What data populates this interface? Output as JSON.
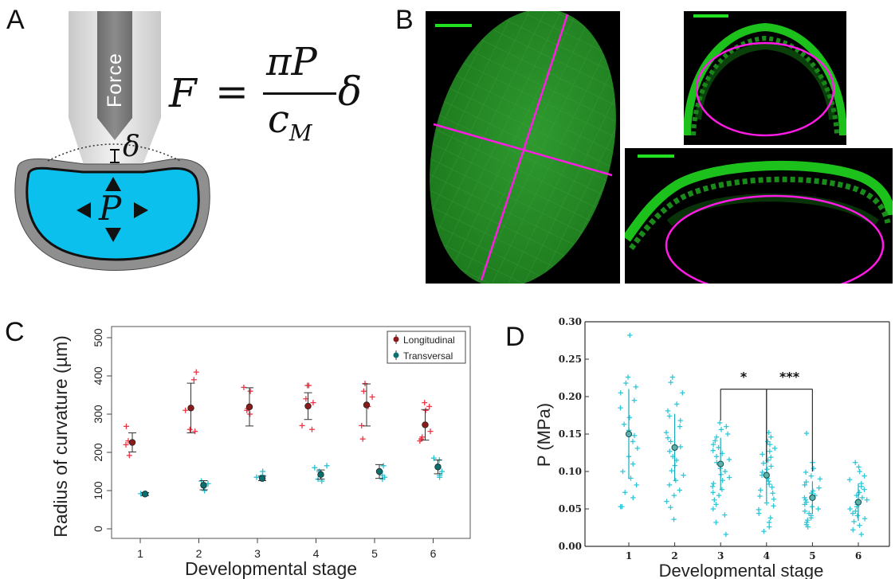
{
  "panels": {
    "a": "A",
    "b": "B",
    "c": "C",
    "d": "D"
  },
  "panel_a": {
    "probe_label": "Force",
    "equation_lhs": "F",
    "equation_eq": "=",
    "numerator": "πP",
    "denominator_c": "c",
    "denominator_sub": "M",
    "delta": "δ",
    "pressure_symbol": "P",
    "colors": {
      "cell": "#0bc0ec",
      "wall": "#8a8a8a",
      "probe": "#7a7a7a",
      "probe_light": "#d8d8d8"
    }
  },
  "panel_b": {
    "colors": {
      "fluor": "#1fd61f",
      "ellipse": "#ff1ae6",
      "scale_bar": "#22e022",
      "background": "#000000"
    }
  },
  "chart_data": [
    {
      "panel": "C",
      "type": "scatter",
      "xlabel": "Developmental stage",
      "ylabel": "Radius of curvature (µm)",
      "categories": [
        "1",
        "2",
        "3",
        "4",
        "5",
        "6"
      ],
      "ylim": [
        -20,
        520
      ],
      "yticks": [
        "0",
        "100",
        "200",
        "300",
        "400",
        "500"
      ],
      "legend_position": "top-right",
      "series": [
        {
          "name": "Longitudinal",
          "color": "#ee3344",
          "mean_color": "#8b1a1a",
          "means": [
            226,
            316,
            319,
            321,
            324,
            272
          ],
          "errors": [
            25,
            65,
            50,
            35,
            55,
            40
          ],
          "points": [
            [
              220,
              230,
              268,
              192
            ],
            [
              410,
              390,
              310,
              260,
              255
            ],
            [
              370,
              360,
              315,
              310,
              300
            ],
            [
              375,
              375,
              340,
              330,
              270,
              260
            ],
            [
              380,
              360,
              345,
              320,
              270,
              235
            ],
            [
              330,
              320,
              310,
              255,
              240,
              235,
              230
            ]
          ]
        },
        {
          "name": "Transversal",
          "color": "#22c0d0",
          "mean_color": "#0c6f6f",
          "means": [
            91,
            114,
            132,
            142,
            150,
            162
          ],
          "errors": [
            4,
            12,
            6,
            12,
            18,
            18
          ],
          "points": [
            [
              92,
              90,
              93
            ],
            [
              125,
              110,
              100,
              118
            ],
            [
              150,
              140,
              130,
              135
            ],
            [
              165,
              160,
              150,
              130,
              125
            ],
            [
              165,
              150,
              135,
              130,
              140
            ],
            [
              185,
              180,
              150,
              140,
              135
            ]
          ]
        }
      ]
    },
    {
      "panel": "D",
      "type": "scatter",
      "xlabel": "Developmental stage",
      "ylabel": "P (MPa)",
      "categories": [
        "1",
        "2",
        "3",
        "4",
        "5",
        "6"
      ],
      "ylim": [
        0,
        0.3
      ],
      "yticks": [
        "0.00",
        "0.05",
        "0.10",
        "0.15",
        "0.20",
        "0.25",
        "0.30"
      ],
      "color": "#2ec8d8",
      "means": [
        0.15,
        0.132,
        0.11,
        0.095,
        0.065,
        0.059
      ],
      "sd": [
        0.06,
        0.045,
        0.035,
        0.035,
        0.022,
        0.025
      ],
      "significance": [
        {
          "from": "3",
          "to": "4",
          "label": "*"
        },
        {
          "from": "4",
          "to": "5",
          "label": "***"
        }
      ],
      "points": [
        [
          0.282,
          0.226,
          0.218,
          0.213,
          0.205,
          0.195,
          0.185,
          0.172,
          0.163,
          0.155,
          0.148,
          0.14,
          0.131,
          0.12,
          0.11,
          0.1,
          0.091,
          0.082,
          0.072,
          0.065,
          0.053,
          0.053
        ],
        [
          0.226,
          0.219,
          0.205,
          0.19,
          0.181,
          0.174,
          0.168,
          0.16,
          0.152,
          0.145,
          0.14,
          0.133,
          0.127,
          0.12,
          0.115,
          0.108,
          0.101,
          0.095,
          0.088,
          0.082,
          0.075,
          0.068,
          0.06,
          0.052,
          0.036
        ],
        [
          0.165,
          0.16,
          0.156,
          0.15,
          0.146,
          0.141,
          0.136,
          0.132,
          0.128,
          0.124,
          0.12,
          0.116,
          0.112,
          0.108,
          0.104,
          0.1,
          0.096,
          0.092,
          0.088,
          0.084,
          0.08,
          0.076,
          0.072,
          0.068,
          0.062,
          0.056,
          0.05,
          0.042,
          0.032,
          0.016
        ],
        [
          0.152,
          0.146,
          0.14,
          0.136,
          0.131,
          0.127,
          0.123,
          0.119,
          0.115,
          0.111,
          0.107,
          0.103,
          0.099,
          0.095,
          0.091,
          0.087,
          0.083,
          0.079,
          0.075,
          0.071,
          0.067,
          0.063,
          0.058,
          0.054,
          0.049,
          0.044,
          0.038,
          0.032,
          0.026,
          0.02
        ],
        [
          0.151,
          0.112,
          0.104,
          0.099,
          0.094,
          0.09,
          0.086,
          0.082,
          0.078,
          0.074,
          0.071,
          0.068,
          0.065,
          0.062,
          0.059,
          0.056,
          0.053,
          0.05,
          0.047,
          0.044,
          0.041,
          0.038,
          0.035,
          0.032,
          0.029,
          0.026
        ],
        [
          0.112,
          0.106,
          0.1,
          0.094,
          0.089,
          0.084,
          0.08,
          0.076,
          0.072,
          0.068,
          0.065,
          0.062,
          0.059,
          0.056,
          0.053,
          0.05,
          0.047,
          0.044,
          0.041,
          0.037,
          0.033,
          0.028,
          0.022,
          0.016
        ]
      ]
    }
  ]
}
